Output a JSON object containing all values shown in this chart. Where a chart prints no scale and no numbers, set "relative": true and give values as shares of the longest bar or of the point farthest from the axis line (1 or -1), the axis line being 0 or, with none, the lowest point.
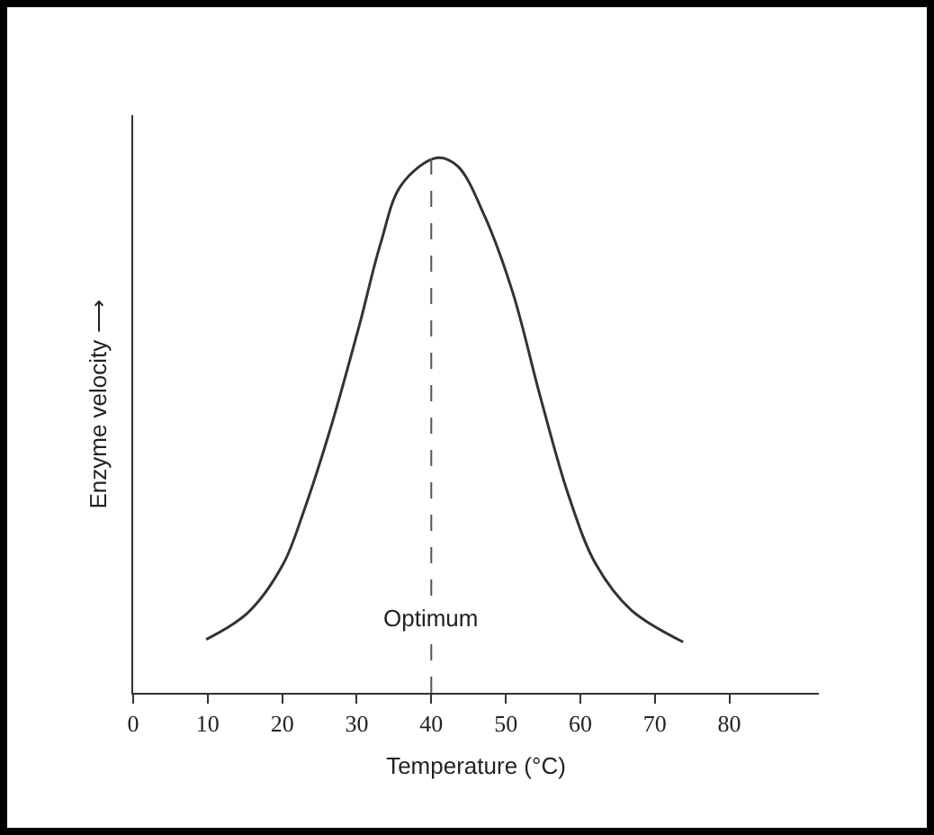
{
  "chart_data": {
    "type": "line",
    "xlabel": "Temperature (°C)",
    "ylabel": "Enzyme velocity ⟶",
    "relative": true,
    "x": [
      9.8,
      15.4,
      20.1,
      22.9,
      26.6,
      30.4,
      33.2,
      36.0,
      40.7,
      43.5,
      47.2,
      50.9,
      54.7,
      58.4,
      62.1,
      66.8,
      73.8
    ],
    "series": [
      {
        "color": "#333333",
        "values": [
          0.1,
          0.15,
          0.24,
          0.34,
          0.5,
          0.69,
          0.84,
          0.95,
          1.0,
          0.985,
          0.89,
          0.75,
          0.55,
          0.37,
          0.24,
          0.155,
          0.095
        ]
      }
    ],
    "xlim": [
      0,
      92
    ],
    "xticks": [
      0,
      10,
      20,
      30,
      40,
      50,
      60,
      70,
      80
    ],
    "ref_lines": [
      {
        "axis": "x",
        "value": 40,
        "label": "Optimum",
        "line_style": "dashed",
        "color": "#555555"
      }
    ],
    "grid": false,
    "marker": "none",
    "line_style": "solid"
  }
}
